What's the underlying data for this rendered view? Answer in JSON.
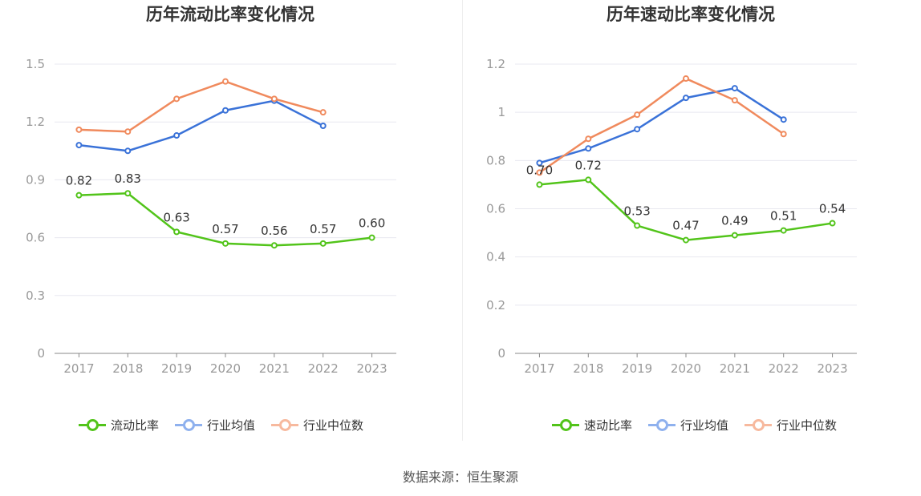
{
  "charts": [
    {
      "title": "历年流动比率变化情况",
      "legend": [
        "流动比率",
        "行业均值",
        "行业中位数"
      ]
    },
    {
      "title": "历年速动比率变化情况",
      "legend": [
        "速动比率",
        "行业均值",
        "行业中位数"
      ]
    }
  ],
  "source": "数据来源：恒生聚源",
  "colors": {
    "company": "#52c41a",
    "avg": "#3a72d8",
    "median": "#f08a5d",
    "grid": "#e8e8f0",
    "axis": "#888888",
    "tick_text": "#999999"
  },
  "chart_data": [
    {
      "type": "line",
      "title": "历年流动比率变化情况",
      "categories": [
        "2017",
        "2018",
        "2019",
        "2020",
        "2021",
        "2022",
        "2023"
      ],
      "yticks": [
        "0",
        "0.3",
        "0.6",
        "0.9",
        "1.2",
        "1.5"
      ],
      "ylim": [
        0,
        1.5
      ],
      "grid": true,
      "legend_position": "bottom",
      "series": [
        {
          "name": "流动比率",
          "values": [
            0.82,
            0.83,
            0.63,
            0.57,
            0.56,
            0.57,
            0.6
          ],
          "labels": [
            "0.82",
            "0.83",
            "0.63",
            "0.57",
            "0.56",
            "0.57",
            "0.60"
          ]
        },
        {
          "name": "行业均值",
          "values": [
            1.08,
            1.05,
            1.13,
            1.26,
            1.31,
            1.18,
            null
          ]
        },
        {
          "name": "行业中位数",
          "values": [
            1.16,
            1.15,
            1.32,
            1.41,
            1.32,
            1.25,
            null
          ]
        }
      ]
    },
    {
      "type": "line",
      "title": "历年速动比率变化情况",
      "categories": [
        "2017",
        "2018",
        "2019",
        "2020",
        "2021",
        "2022",
        "2023"
      ],
      "yticks": [
        "0",
        "0.2",
        "0.4",
        "0.6",
        "0.8",
        "1",
        "1.2"
      ],
      "ylim": [
        0,
        1.2
      ],
      "grid": true,
      "legend_position": "bottom",
      "series": [
        {
          "name": "速动比率",
          "values": [
            0.7,
            0.72,
            0.53,
            0.47,
            0.49,
            0.51,
            0.54
          ],
          "labels": [
            "0.70",
            "0.72",
            "0.53",
            "0.47",
            "0.49",
            "0.51",
            "0.54"
          ]
        },
        {
          "name": "行业均值",
          "values": [
            0.79,
            0.85,
            0.93,
            1.06,
            1.1,
            0.97,
            null
          ]
        },
        {
          "name": "行业中位数",
          "values": [
            0.75,
            0.89,
            0.99,
            1.14,
            1.05,
            0.91,
            null
          ]
        }
      ]
    }
  ]
}
